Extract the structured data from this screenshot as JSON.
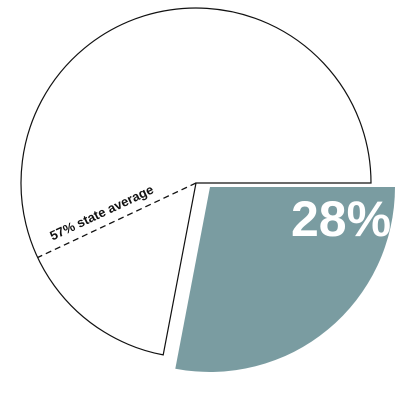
{
  "chart_data": {
    "type": "pie",
    "title": "",
    "slices": [
      {
        "label": "28%",
        "value": 28,
        "color": "#7a9ca1",
        "exploded": true
      },
      {
        "value": 72,
        "color": "#ffffff"
      }
    ],
    "reference_line": {
      "label": "57% state average",
      "value": 57,
      "style": "dashed"
    },
    "outline_color": "#111111"
  }
}
